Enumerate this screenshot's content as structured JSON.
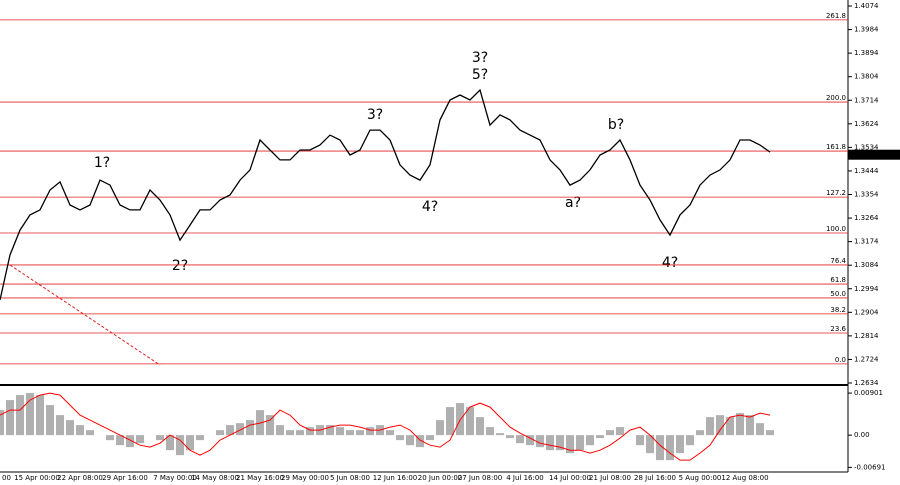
{
  "chart_data": [
    {
      "type": "line",
      "color": "#000000",
      "values": [
        1.2951,
        1.3123,
        1.3218,
        1.3276,
        1.3295,
        1.3371,
        1.3402,
        1.3314,
        1.3295,
        1.3314,
        1.3409,
        1.339,
        1.3314,
        1.3295,
        1.3295,
        1.3371,
        1.3333,
        1.3276,
        1.318,
        1.3237,
        1.3295,
        1.3295,
        1.3333,
        1.3352,
        1.3409,
        1.3448,
        1.3562,
        1.3524,
        1.3486,
        1.3486,
        1.3524,
        1.3524,
        1.3543,
        1.3581,
        1.3562,
        1.3505,
        1.3524,
        1.36,
        1.36,
        1.3562,
        1.3467,
        1.3428,
        1.3409,
        1.3467,
        1.3639,
        1.3715,
        1.3734,
        1.3715,
        1.3753,
        1.3619,
        1.3658,
        1.3639,
        1.36,
        1.3581,
        1.3562,
        1.3486,
        1.3448,
        1.339,
        1.3409,
        1.3448,
        1.3505,
        1.3524,
        1.3562,
        1.3486,
        1.339,
        1.3333,
        1.3257,
        1.3199,
        1.3276,
        1.3314,
        1.339,
        1.3428,
        1.3448,
        1.3486,
        1.3562,
        1.3562,
        1.3543,
        1.3516
      ],
      "ylim": [
        1.2634,
        1.4074
      ],
      "yticks": [
        1.4074,
        1.3984,
        1.3894,
        1.3804,
        1.3714,
        1.3624,
        1.3534,
        1.3444,
        1.3354,
        1.3264,
        1.3174,
        1.3084,
        1.2994,
        1.2904,
        1.2814,
        1.2724,
        1.2634
      ],
      "x_labels": [
        "00",
        "15 Apr 00:00",
        "22 Apr 08:00",
        "29 Apr 16:00",
        "7 May 00:00",
        "14 May 08:00",
        "21 May 16:00",
        "29 May 00:00",
        "5 Jun 08:00",
        "12 Jun 16:00",
        "20 Jun 00:00",
        "27 Jun 08:00",
        "4 Jul 16:00",
        "14 Jul 00:00",
        "21 Jul 08:00",
        "28 Jul 16:00",
        "5 Aug 00:00",
        "12 Aug 08:00"
      ],
      "current_price": 1.3506,
      "level_color": "#e02020",
      "levels": [
        {
          "label": "261.8",
          "value": 1.4021
        },
        {
          "label": "200.0",
          "value": 1.3707
        },
        {
          "label": "161.8",
          "value": 1.352
        },
        {
          "label": "127.2",
          "value": 1.3344
        },
        {
          "label": "100.0",
          "value": 1.3207
        },
        {
          "label": "76.4",
          "value": 1.3085
        },
        {
          "label": "61.8",
          "value": 1.3012
        },
        {
          "label": "50.0",
          "value": 1.2959
        },
        {
          "label": "38.2",
          "value": 1.2898
        },
        {
          "label": "23.6",
          "value": 1.2825
        },
        {
          "label": "0.0",
          "value": 1.2707
        }
      ],
      "annotations": [
        {
          "text": "1?",
          "color": "#e02020"
        },
        {
          "text": "2?",
          "color": "#e02020"
        },
        {
          "text": "3?",
          "color": "#e02020"
        },
        {
          "text": "4?",
          "color": "#e02020"
        },
        {
          "text": "5?",
          "color": "#e02020"
        },
        {
          "text": "3?",
          "color": "#2020d0"
        },
        {
          "text": "a?",
          "color": "#e02020"
        },
        {
          "text": "b?",
          "color": "#e02020"
        },
        {
          "text": "4?",
          "color": "#2020d0"
        }
      ]
    },
    {
      "type": "macd",
      "series": [
        {
          "color": "#b0b0b0",
          "values": [
            0.00536,
            0.00751,
            0.00858,
            0.00901,
            0.00858,
            0.00644,
            0.00429,
            0.00322,
            0.00215,
            0.00107,
            0,
            -0.00107,
            -0.00215,
            -0.00257,
            -0.00172,
            0,
            -0.00107,
            -0.00322,
            -0.00429,
            -0.00322,
            -0.00107,
            0,
            0.00107,
            0.00215,
            0.00257,
            0.00322,
            0.00536,
            0.00429,
            0.00215,
            0.00107,
            0.00107,
            0.00172,
            0.00215,
            0.00215,
            0.00172,
            0.00107,
            0.00107,
            0.00172,
            0.00215,
            0.00107,
            -0.00107,
            -0.00215,
            -0.00257,
            -0.00107,
            0.00322,
            0.00601,
            0.00687,
            0.00601,
            0.00386,
            0.00172,
            0.00043,
            -0.00064,
            -0.00172,
            -0.00215,
            -0.00257,
            -0.00322,
            -0.00322,
            -0.00386,
            -0.00322,
            -0.00215,
            -0.00064,
            0.00107,
            0.00172,
            0,
            -0.00215,
            -0.00386,
            -0.00536,
            -0.00536,
            -0.00386,
            -0.00215,
            0.00107,
            0.00386,
            0.00429,
            0.00386,
            0.00472,
            0.00429,
            0.00257,
            0.00107
          ]
        },
        {
          "color": "#ff0000",
          "values": [
            0.00429,
            0.00536,
            0.00536,
            0.00751,
            0.00858,
            0.00901,
            0.00858,
            0.00644,
            0.00429,
            0.00322,
            0.00215,
            0.00107,
            0,
            -0.00107,
            -0.00215,
            -0.00257,
            -0.00172,
            0,
            -0.00107,
            -0.00322,
            -0.00429,
            -0.00322,
            -0.00107,
            0,
            0.00107,
            0.00215,
            0.00257,
            0.00322,
            0.00536,
            0.00429,
            0.00215,
            0.00107,
            0.00107,
            0.00172,
            0.00215,
            0.00215,
            0.00172,
            0.00107,
            0.00107,
            0.00172,
            0.00215,
            0.00107,
            -0.00107,
            -0.00215,
            -0.00257,
            -0.00107,
            0.00322,
            0.00601,
            0.00687,
            0.00601,
            0.00386,
            0.00172,
            0.00043,
            -0.00064,
            -0.00172,
            -0.00215,
            -0.00257,
            -0.00322,
            -0.00322,
            -0.00386,
            -0.00322,
            -0.00215,
            -0.00064,
            0.00107,
            0.00172,
            0,
            -0.00215,
            -0.00386,
            -0.00536,
            -0.00536,
            -0.00386,
            -0.00215,
            0.00107,
            0.00386,
            0.00429,
            0.00386,
            0.00472,
            0.00429
          ]
        }
      ],
      "ylim": [
        -0.0079,
        0.0101
      ],
      "yticks": [
        0.00901,
        {
          "value": 0,
          "label": "0.00"
        },
        -0.00691
      ]
    }
  ]
}
